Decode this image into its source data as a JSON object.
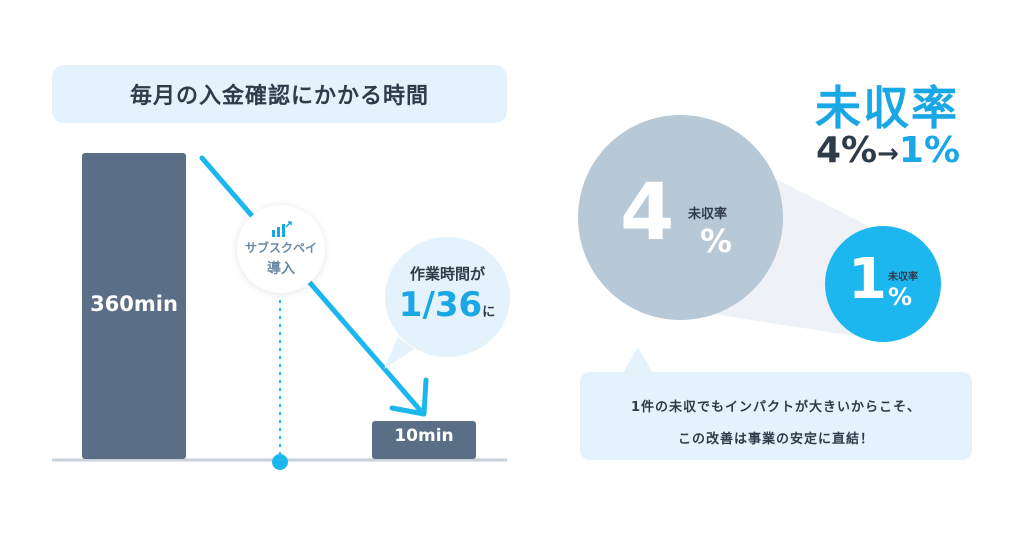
{
  "title": "毎月の入金確認にかかる時間",
  "colors": {
    "bar": "#5a6e85",
    "accent": "#1aa7e6",
    "axis": "#c9d2da",
    "bubble": "#e4f2fb"
  },
  "chart_data": {
    "type": "bar",
    "title": "毎月の入金確認にかかる時間",
    "categories": [
      "",
      ""
    ],
    "values": [
      360,
      10
    ],
    "unit": "min",
    "data_labels": [
      "360min",
      "10min"
    ],
    "ylim": [
      0,
      360
    ]
  },
  "brand": {
    "icon": "chart-icon",
    "name": "サブスクペイ",
    "intro": "導入"
  },
  "callout": {
    "line1": "作業時間が",
    "ratio": "1/36",
    "suffix": "に"
  },
  "rate": {
    "title": "未収率",
    "before": "4%",
    "arrow": "→",
    "after": "1%",
    "before_value": 4,
    "after_value": 1,
    "label": "未収率",
    "before_num": "4",
    "after_num": "1",
    "pct": "%"
  },
  "note": {
    "line1": "1件の未収でもインパクトが大きいからこそ、",
    "line2": "この改善は事業の安定に直結！"
  }
}
